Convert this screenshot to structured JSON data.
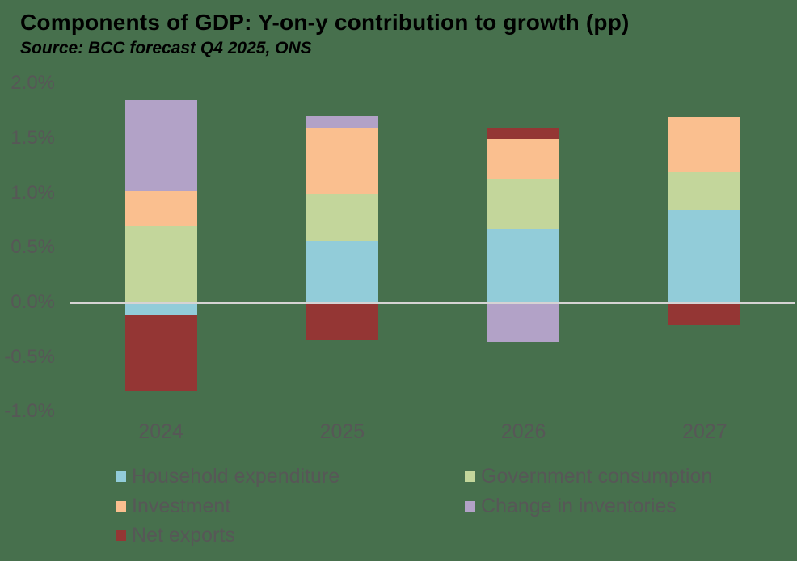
{
  "header": {
    "title": "Components of GDP: Y-on-y contribution to growth (pp)",
    "source": "Source: BCC forecast Q4 2025, ONS"
  },
  "colors": {
    "background": "#47704d",
    "zero_line": "#d6d3d4",
    "axis_text": "#575757",
    "title_text": "#000000"
  },
  "chart_data": {
    "type": "bar",
    "stacked": true,
    "title": "Components of GDP: Y-on-y contribution to growth (pp)",
    "subtitle": "Source: BCC forecast Q4 2025, ONS",
    "xlabel": "",
    "ylabel": "",
    "unit": "percentage points",
    "categories": [
      "2024",
      "2025",
      "2026",
      "2027"
    ],
    "series": [
      {
        "name": "Household expenditure",
        "color": "#92ccd9",
        "values": [
          -0.12,
          0.56,
          0.67,
          0.84
        ]
      },
      {
        "name": "Government consumption",
        "color": "#c3d69b",
        "values": [
          0.7,
          0.43,
          0.45,
          0.35
        ]
      },
      {
        "name": "Investment",
        "color": "#fabf8f",
        "values": [
          0.32,
          0.61,
          0.37,
          0.5
        ]
      },
      {
        "name": "Change in inventories",
        "color": "#b2a2c7",
        "values": [
          0.83,
          0.1,
          -0.36,
          0.0
        ]
      },
      {
        "name": "Net exports",
        "color": "#943634",
        "values": [
          -0.69,
          -0.34,
          0.11,
          -0.21
        ]
      }
    ],
    "y_ticks": [
      "2.0%",
      "1.5%",
      "1.0%",
      "0.5%",
      "0.0%",
      "-0.5%",
      "-1.0%"
    ],
    "ylim": [
      -1.0,
      2.0
    ],
    "grid": false,
    "legend_position": "bottom",
    "legend_columns": [
      [
        "Household expenditure",
        "Investment",
        "Net exports"
      ],
      [
        "Government consumption",
        "Change in inventories"
      ]
    ]
  }
}
